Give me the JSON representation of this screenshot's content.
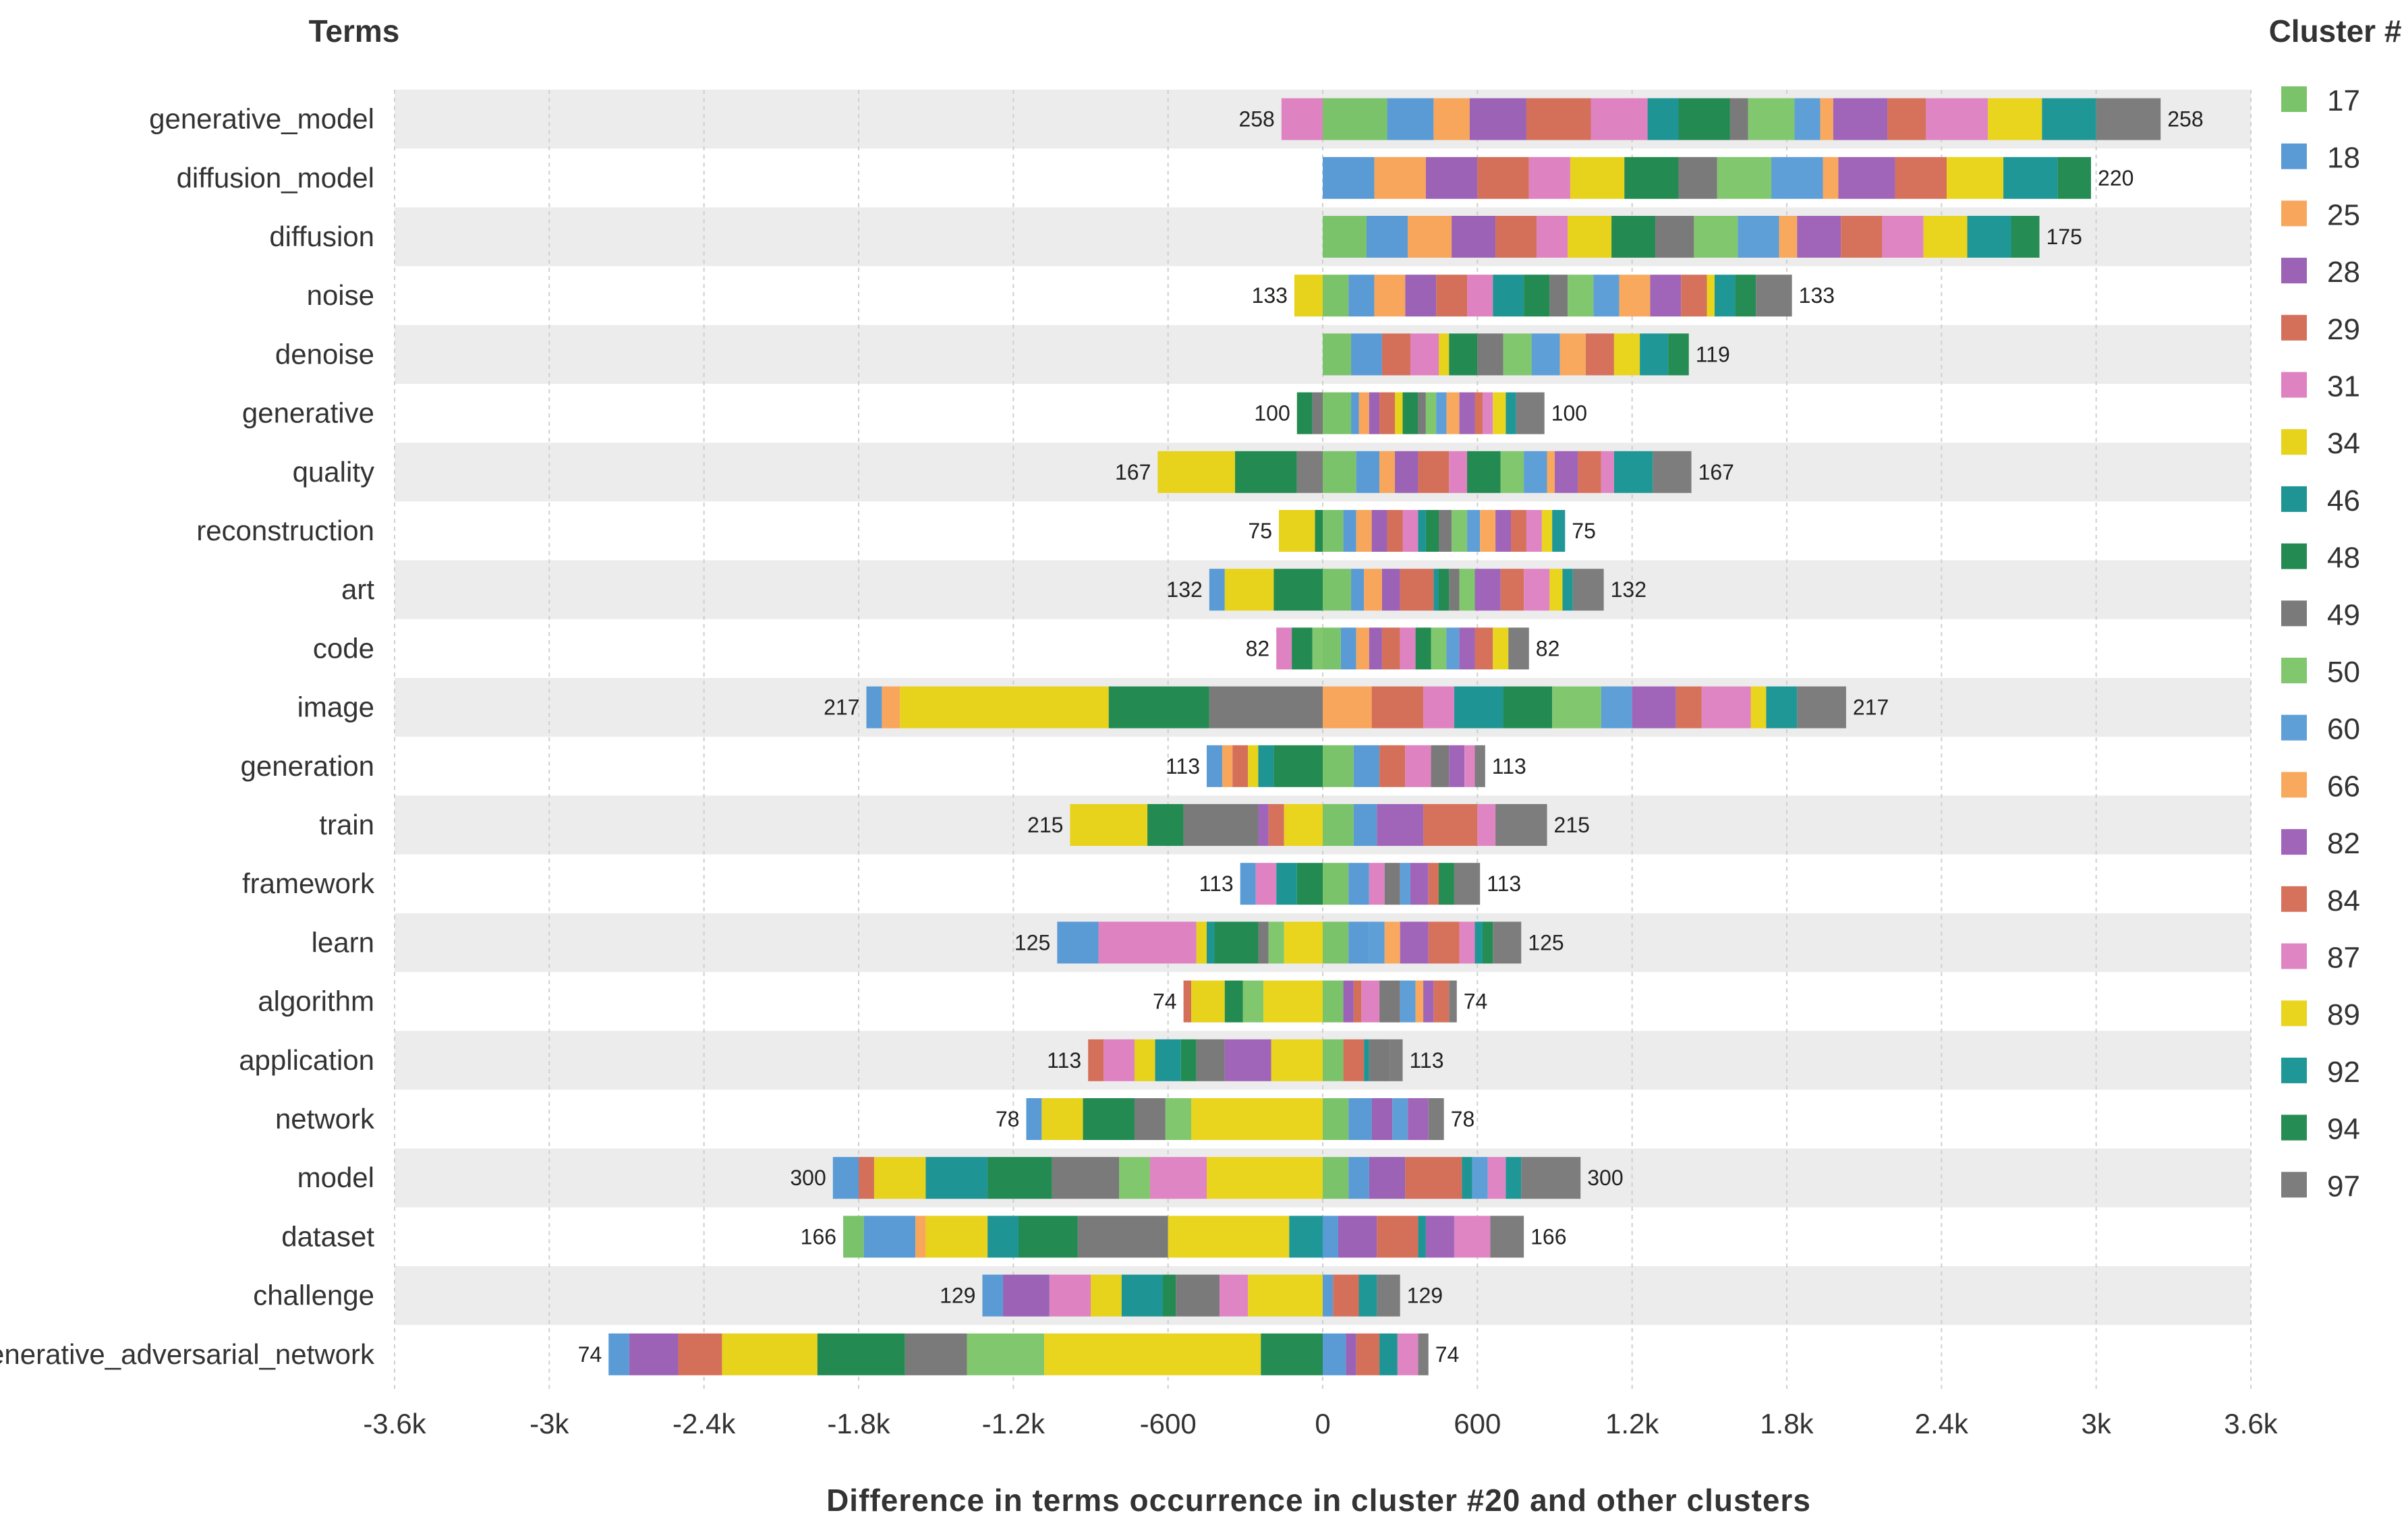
{
  "chart_data": {
    "type": "bar",
    "orientation": "horizontal",
    "stacked": true,
    "header_left": "Terms",
    "legend_title": "Cluster #",
    "xlabel": "Difference in terms occurrence in cluster #20 and other clusters",
    "xlim": [
      -3600,
      3600
    ],
    "xticks": [
      -3600,
      -3000,
      -2400,
      -1800,
      -1200,
      -600,
      0,
      600,
      1200,
      1800,
      2400,
      3000,
      3600
    ],
    "xtick_labels": [
      "-3.6k",
      "-3k",
      "-2.4k",
      "-1.8k",
      "-1.2k",
      "-600",
      "0",
      "600",
      "1.2k",
      "1.8k",
      "2.4k",
      "3k",
      "3.6k"
    ],
    "grid": true,
    "legend_position": "right",
    "clusters": [
      {
        "label": "17",
        "color": "#7bc36a"
      },
      {
        "label": "18",
        "color": "#5a9bd5"
      },
      {
        "label": "25",
        "color": "#f7a65c"
      },
      {
        "label": "28",
        "color": "#9b62b5"
      },
      {
        "label": "29",
        "color": "#d4705a"
      },
      {
        "label": "31",
        "color": "#de82c1"
      },
      {
        "label": "34",
        "color": "#e7d21c"
      },
      {
        "label": "46",
        "color": "#1e9594"
      },
      {
        "label": "48",
        "color": "#238b52"
      },
      {
        "label": "49",
        "color": "#7a7a7a"
      },
      {
        "label": "50",
        "color": "#81c76e"
      },
      {
        "label": "60",
        "color": "#5e9fd8"
      },
      {
        "label": "66",
        "color": "#f9a95e"
      },
      {
        "label": "82",
        "color": "#a065b8"
      },
      {
        "label": "84",
        "color": "#d6725c"
      },
      {
        "label": "87",
        "color": "#e085c4"
      },
      {
        "label": "89",
        "color": "#e9d41e"
      },
      {
        "label": "92",
        "color": "#209797"
      },
      {
        "label": "94",
        "color": "#258d54"
      },
      {
        "label": "97",
        "color": "#7d7d7d"
      }
    ],
    "categories": [
      "generative_model",
      "diffusion_model",
      "diffusion",
      "noise",
      "denoise",
      "generative",
      "quality",
      "reconstruction",
      "art",
      "code",
      "image",
      "generation",
      "train",
      "framework",
      "learn",
      "algorithm",
      "application",
      "network",
      "model",
      "dataset",
      "challenge",
      "generative_adversarial_network"
    ],
    "row_totals": [
      [
        "258",
        "258"
      ],
      [
        "",
        "220"
      ],
      [
        "",
        "175"
      ],
      [
        "133",
        "133"
      ],
      [
        "",
        "119"
      ],
      [
        "100",
        "100"
      ],
      [
        "167",
        "167"
      ],
      [
        "75",
        "75"
      ],
      [
        "132",
        "132"
      ],
      [
        "82",
        "82"
      ],
      [
        "217",
        "217"
      ],
      [
        "113",
        "113"
      ],
      [
        "215",
        "215"
      ],
      [
        "113",
        "113"
      ],
      [
        "125",
        "125"
      ],
      [
        "74",
        "74"
      ],
      [
        "113",
        "113"
      ],
      [
        "78",
        "78"
      ],
      [
        "300",
        "300"
      ],
      [
        "166",
        "166"
      ],
      [
        "129",
        "129"
      ],
      [
        "74",
        "74"
      ]
    ],
    "rows": [
      {
        "neg": [
          0,
          0,
          0,
          0,
          0,
          160,
          0,
          0,
          0,
          0,
          0,
          0,
          0,
          0,
          0,
          0,
          0,
          0,
          0,
          0
        ],
        "pos": [
          250,
          180,
          140,
          220,
          250,
          220,
          0,
          120,
          200,
          70,
          180,
          100,
          50,
          210,
          150,
          240,
          210,
          210,
          0,
          250
        ]
      },
      {
        "neg": [
          0,
          0,
          0,
          0,
          0,
          0,
          0,
          0,
          0,
          0,
          0,
          0,
          0,
          0,
          0,
          0,
          0,
          0,
          0,
          0
        ],
        "pos": [
          0,
          200,
          200,
          200,
          200,
          160,
          210,
          0,
          210,
          150,
          210,
          200,
          60,
          220,
          200,
          0,
          220,
          210,
          130,
          0
        ]
      },
      {
        "neg": [
          0,
          0,
          0,
          0,
          0,
          0,
          0,
          0,
          0,
          0,
          0,
          0,
          0,
          0,
          0,
          0,
          0,
          0,
          0,
          0
        ],
        "pos": [
          170,
          160,
          170,
          170,
          160,
          120,
          170,
          0,
          170,
          150,
          170,
          160,
          70,
          170,
          160,
          160,
          170,
          170,
          110,
          0
        ]
      },
      {
        "neg": [
          0,
          0,
          0,
          0,
          0,
          0,
          110,
          0,
          0,
          0,
          0,
          0,
          0,
          0,
          0,
          0,
          0,
          0,
          0,
          0
        ],
        "pos": [
          100,
          100,
          120,
          120,
          120,
          100,
          0,
          120,
          100,
          70,
          100,
          100,
          120,
          120,
          100,
          0,
          30,
          80,
          80,
          140
        ]
      },
      {
        "neg": [
          0,
          0,
          0,
          0,
          0,
          0,
          0,
          0,
          0,
          0,
          0,
          0,
          0,
          0,
          0,
          0,
          0,
          0,
          0,
          0
        ],
        "pos": [
          110,
          120,
          0,
          0,
          110,
          110,
          40,
          0,
          110,
          100,
          110,
          110,
          100,
          0,
          110,
          0,
          100,
          110,
          80,
          0
        ]
      },
      {
        "neg": [
          0,
          0,
          0,
          0,
          0,
          0,
          0,
          0,
          60,
          40,
          0,
          0,
          0,
          0,
          0,
          0,
          0,
          0,
          0,
          0
        ],
        "pos": [
          110,
          30,
          40,
          40,
          60,
          0,
          30,
          0,
          60,
          30,
          40,
          40,
          50,
          60,
          30,
          40,
          50,
          40,
          0,
          110
        ]
      },
      {
        "neg": [
          0,
          0,
          0,
          0,
          0,
          0,
          300,
          0,
          240,
          0,
          0,
          0,
          0,
          0,
          0,
          0,
          0,
          0,
          0,
          100
        ],
        "pos": [
          130,
          90,
          60,
          90,
          120,
          70,
          0,
          0,
          130,
          0,
          90,
          90,
          30,
          90,
          90,
          50,
          0,
          150,
          0,
          150
        ]
      },
      {
        "neg": [
          0,
          0,
          0,
          0,
          0,
          0,
          140,
          0,
          30,
          0,
          0,
          0,
          0,
          0,
          0,
          0,
          0,
          0,
          0,
          0
        ],
        "pos": [
          80,
          50,
          60,
          60,
          60,
          60,
          0,
          30,
          50,
          50,
          60,
          50,
          60,
          60,
          60,
          60,
          40,
          50,
          0,
          0
        ]
      },
      {
        "neg": [
          0,
          60,
          0,
          0,
          0,
          0,
          190,
          0,
          190,
          0,
          0,
          0,
          0,
          0,
          0,
          0,
          0,
          0,
          0,
          0
        ],
        "pos": [
          110,
          50,
          70,
          70,
          130,
          0,
          0,
          20,
          40,
          40,
          60,
          0,
          0,
          100,
          90,
          100,
          50,
          40,
          0,
          120
        ]
      },
      {
        "neg": [
          0,
          0,
          0,
          0,
          0,
          60,
          0,
          0,
          80,
          0,
          40,
          0,
          0,
          0,
          0,
          0,
          0,
          0,
          0,
          0
        ],
        "pos": [
          70,
          60,
          50,
          50,
          70,
          60,
          0,
          0,
          60,
          0,
          60,
          50,
          0,
          60,
          70,
          0,
          60,
          0,
          0,
          80
        ]
      },
      {
        "neg": [
          0,
          60,
          70,
          0,
          0,
          0,
          810,
          0,
          390,
          440,
          0,
          0,
          0,
          0,
          0,
          0,
          0,
          0,
          0,
          0
        ],
        "pos": [
          0,
          0,
          190,
          0,
          200,
          120,
          0,
          190,
          190,
          0,
          190,
          120,
          0,
          170,
          100,
          190,
          60,
          120,
          0,
          190
        ]
      },
      {
        "neg": [
          0,
          60,
          40,
          0,
          60,
          0,
          40,
          60,
          190,
          0,
          0,
          0,
          0,
          0,
          0,
          0,
          0,
          0,
          0,
          0
        ],
        "pos": [
          120,
          100,
          0,
          0,
          100,
          100,
          0,
          0,
          0,
          70,
          0,
          0,
          0,
          60,
          0,
          40,
          0,
          0,
          0,
          40
        ]
      },
      {
        "neg": [
          0,
          0,
          0,
          0,
          0,
          0,
          300,
          0,
          140,
          290,
          0,
          0,
          0,
          40,
          60,
          0,
          150,
          0,
          0,
          0
        ],
        "pos": [
          120,
          90,
          0,
          0,
          0,
          0,
          0,
          0,
          0,
          0,
          0,
          0,
          0,
          180,
          210,
          70,
          0,
          0,
          0,
          200
        ]
      },
      {
        "neg": [
          0,
          60,
          0,
          0,
          0,
          80,
          0,
          80,
          100,
          0,
          0,
          0,
          0,
          0,
          0,
          0,
          0,
          0,
          0,
          0
        ],
        "pos": [
          100,
          80,
          0,
          0,
          0,
          60,
          0,
          0,
          0,
          60,
          0,
          40,
          0,
          70,
          40,
          0,
          0,
          0,
          60,
          100
        ]
      },
      {
        "neg": [
          0,
          160,
          0,
          0,
          0,
          380,
          40,
          30,
          170,
          40,
          60,
          0,
          0,
          0,
          0,
          0,
          150,
          0,
          0,
          0
        ],
        "pos": [
          100,
          80,
          0,
          0,
          0,
          0,
          0,
          0,
          0,
          0,
          0,
          60,
          60,
          110,
          120,
          60,
          0,
          30,
          40,
          110
        ]
      },
      {
        "neg": [
          0,
          0,
          0,
          0,
          30,
          0,
          130,
          0,
          70,
          0,
          80,
          0,
          0,
          0,
          0,
          0,
          230,
          0,
          0,
          0
        ],
        "pos": [
          80,
          0,
          0,
          40,
          30,
          70,
          0,
          0,
          0,
          80,
          0,
          60,
          30,
          40,
          60,
          0,
          0,
          0,
          0,
          30
        ]
      },
      {
        "neg": [
          0,
          0,
          0,
          0,
          60,
          120,
          80,
          100,
          60,
          110,
          0,
          0,
          0,
          180,
          0,
          0,
          200,
          0,
          0,
          0
        ],
        "pos": [
          80,
          0,
          0,
          0,
          80,
          0,
          0,
          20,
          0,
          80,
          0,
          0,
          0,
          0,
          0,
          0,
          0,
          0,
          0,
          50
        ]
      },
      {
        "neg": [
          0,
          60,
          0,
          0,
          0,
          0,
          160,
          0,
          200,
          120,
          100,
          0,
          0,
          0,
          0,
          0,
          510,
          0,
          0,
          0
        ],
        "pos": [
          100,
          90,
          0,
          80,
          0,
          0,
          0,
          0,
          0,
          0,
          0,
          60,
          0,
          80,
          0,
          0,
          0,
          0,
          0,
          60
        ]
      },
      {
        "neg": [
          0,
          100,
          0,
          0,
          60,
          0,
          200,
          240,
          250,
          260,
          120,
          0,
          0,
          0,
          0,
          220,
          450,
          0,
          0,
          0
        ],
        "pos": [
          100,
          80,
          0,
          140,
          220,
          0,
          0,
          40,
          0,
          0,
          0,
          60,
          0,
          0,
          0,
          70,
          0,
          60,
          0,
          230
        ]
      },
      {
        "neg": [
          80,
          200,
          40,
          0,
          0,
          0,
          240,
          120,
          230,
          350,
          0,
          0,
          0,
          0,
          0,
          0,
          470,
          130,
          0,
          0
        ],
        "pos": [
          0,
          60,
          0,
          150,
          160,
          0,
          0,
          30,
          0,
          0,
          0,
          0,
          0,
          110,
          0,
          140,
          0,
          0,
          0,
          130
        ]
      },
      {
        "neg": [
          0,
          80,
          0,
          180,
          0,
          160,
          120,
          160,
          50,
          170,
          0,
          0,
          0,
          0,
          0,
          110,
          290,
          0,
          0,
          0
        ],
        "pos": [
          0,
          40,
          0,
          0,
          100,
          0,
          0,
          0,
          0,
          0,
          0,
          0,
          0,
          0,
          0,
          0,
          0,
          70,
          0,
          90
        ]
      },
      {
        "neg": [
          0,
          80,
          0,
          190,
          170,
          0,
          370,
          0,
          340,
          240,
          300,
          0,
          0,
          0,
          0,
          0,
          840,
          0,
          240,
          0
        ],
        "pos": [
          0,
          90,
          0,
          40,
          90,
          0,
          0,
          70,
          0,
          0,
          0,
          0,
          0,
          0,
          0,
          80,
          0,
          0,
          0,
          40
        ]
      }
    ]
  }
}
